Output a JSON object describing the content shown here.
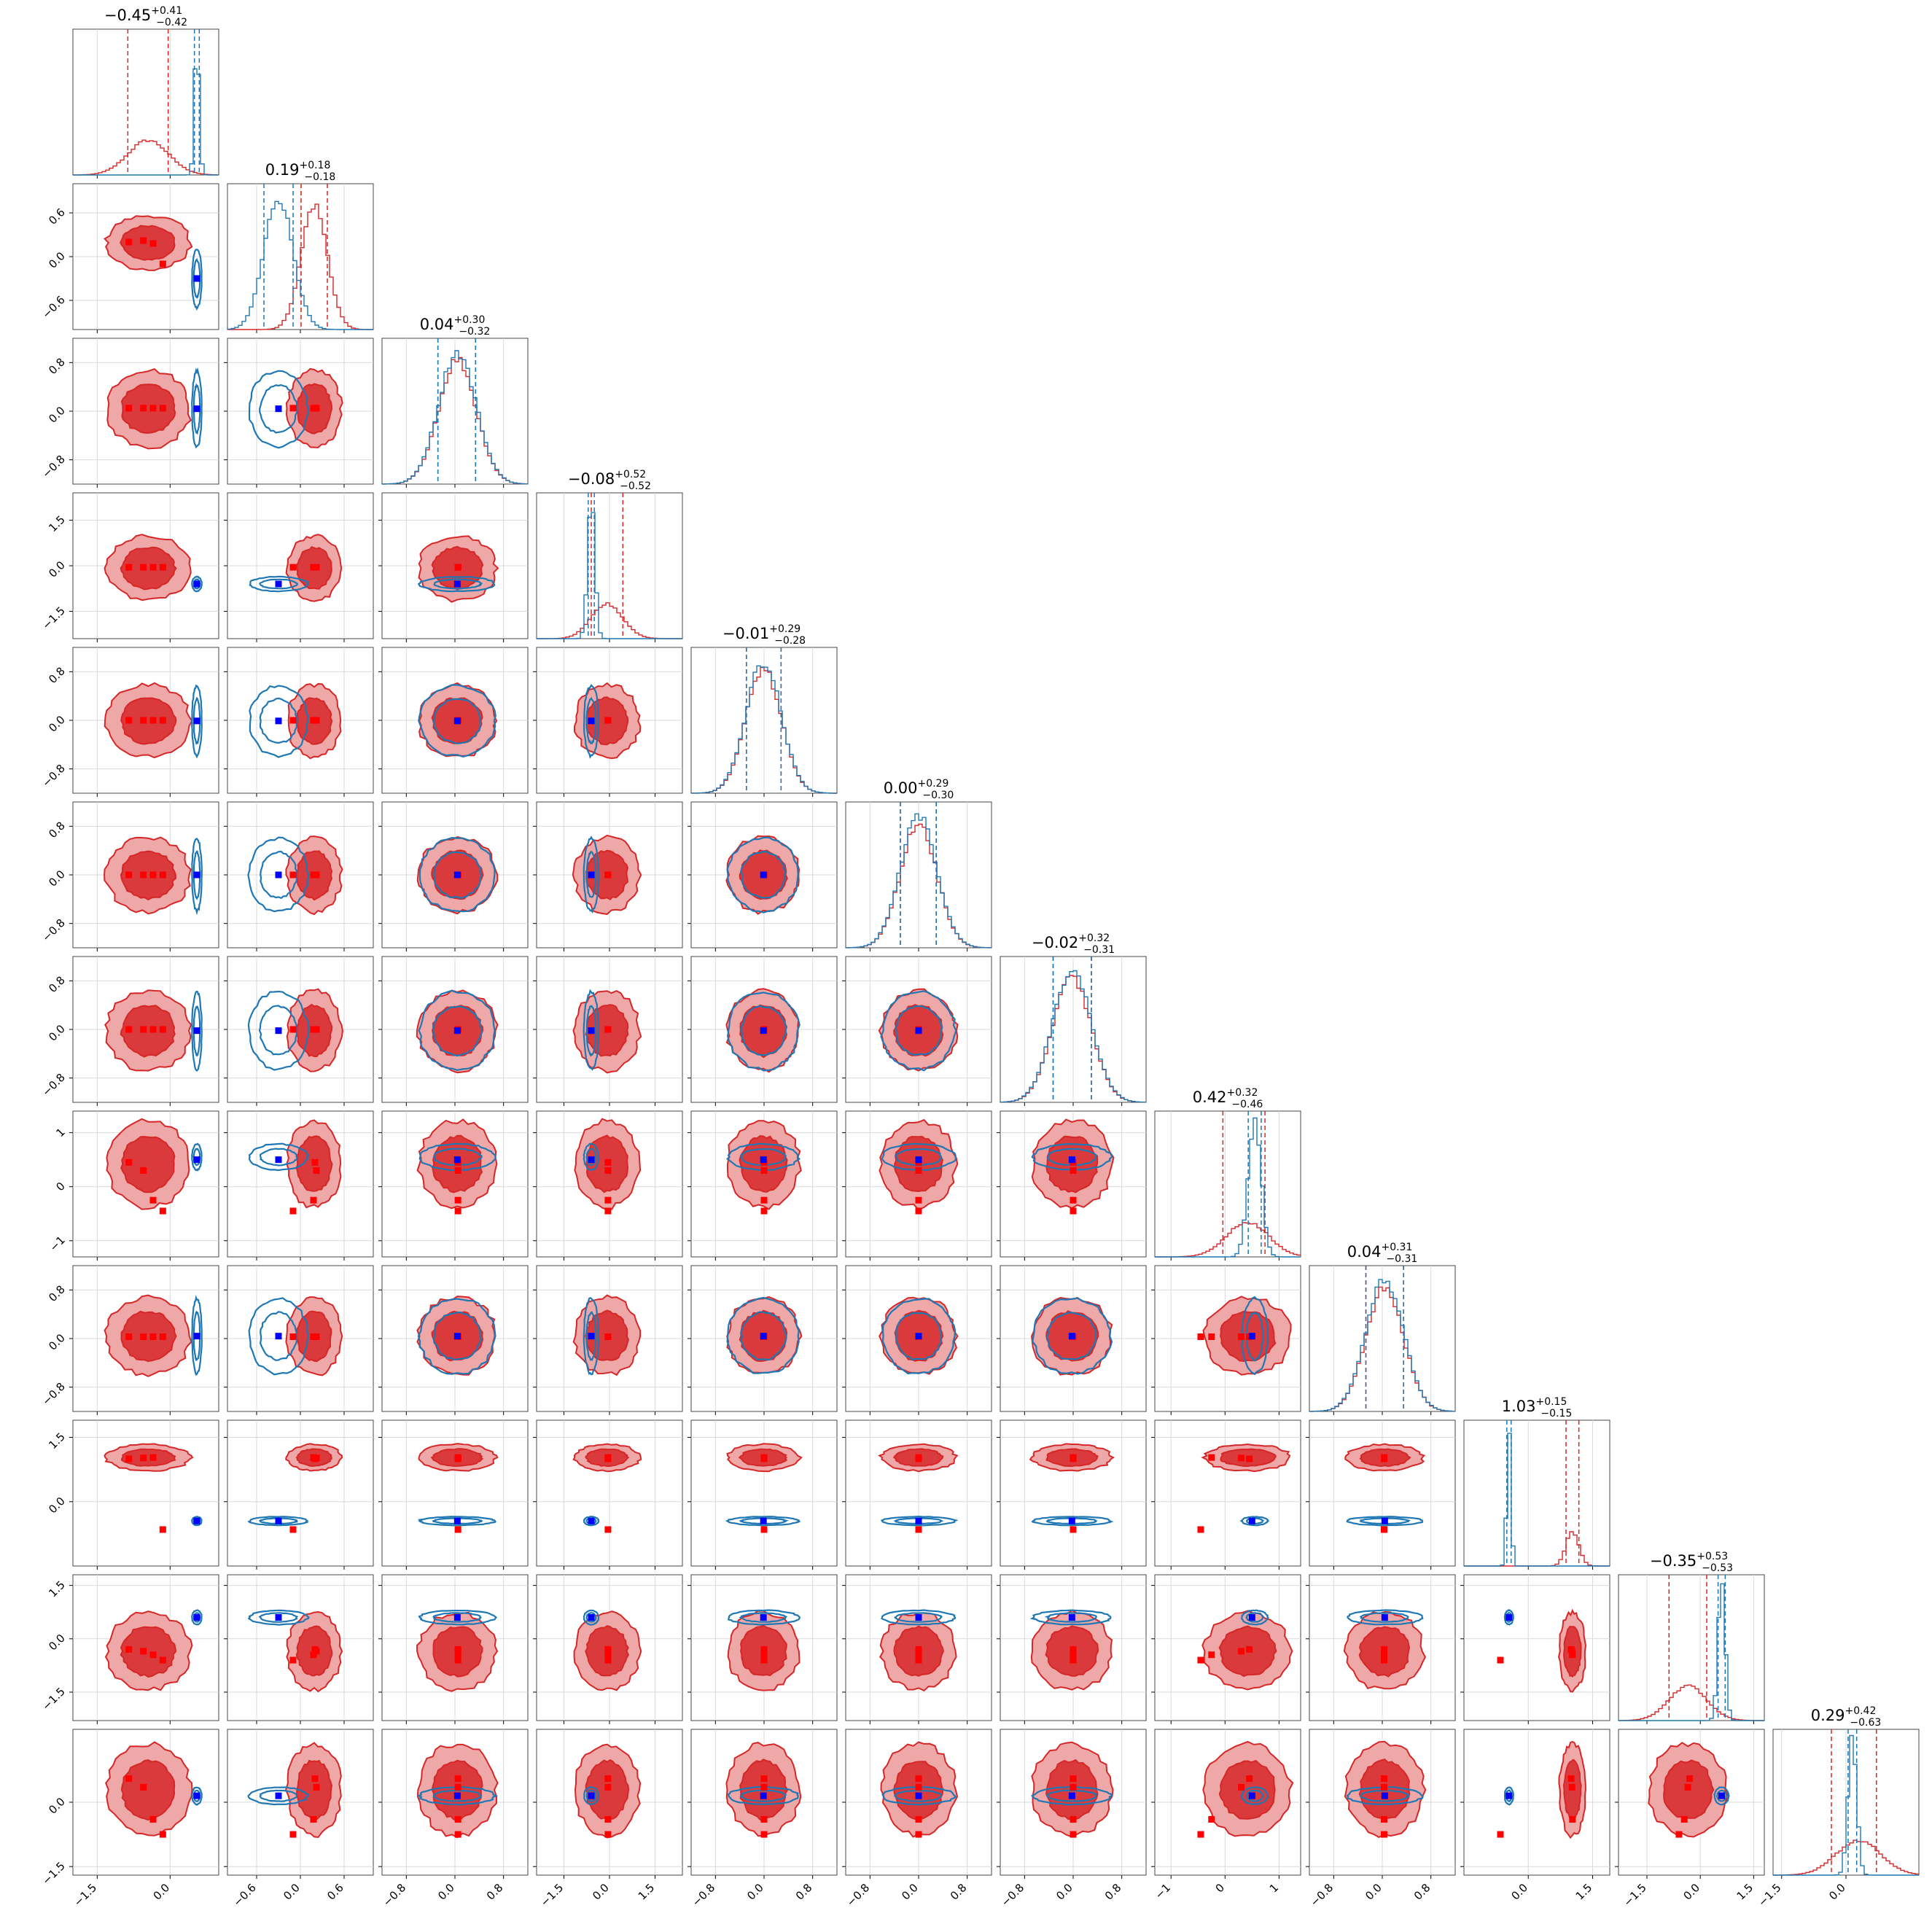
{
  "chart_data": {
    "type": "scatter",
    "title": "",
    "n_params": 12,
    "grid": true,
    "colors": {
      "red": "#d62728",
      "blue": "#1f77b4",
      "marker_blue": "#0000ff",
      "marker_red": "#ff0000"
    },
    "titles": [
      {
        "median": "−0.45",
        "plus": "+0.41",
        "minus": "−0.42"
      },
      {
        "median": "0.19",
        "plus": "+0.18",
        "minus": "−0.18"
      },
      {
        "median": "0.04",
        "plus": "+0.30",
        "minus": "−0.32"
      },
      {
        "median": "−0.08",
        "plus": "+0.52",
        "minus": "−0.52"
      },
      {
        "median": "−0.01",
        "plus": "+0.29",
        "minus": "−0.28"
      },
      {
        "median": "0.00",
        "plus": "+0.29",
        "minus": "−0.30"
      },
      {
        "median": "−0.02",
        "plus": "+0.32",
        "minus": "−0.31"
      },
      {
        "median": "0.42",
        "plus": "+0.32",
        "minus": "−0.46"
      },
      {
        "median": "0.04",
        "plus": "+0.31",
        "minus": "−0.31"
      },
      {
        "median": "1.03",
        "plus": "+0.15",
        "minus": "−0.15"
      },
      {
        "median": "−0.35",
        "plus": "+0.53",
        "minus": "−0.53"
      },
      {
        "median": "0.29",
        "plus": "+0.42",
        "minus": "−0.63"
      }
    ],
    "ranges": [
      [
        -2.0,
        1.0
      ],
      [
        -1.0,
        1.0
      ],
      [
        -1.2,
        1.2
      ],
      [
        -2.4,
        2.4
      ],
      [
        -1.2,
        1.2
      ],
      [
        -1.2,
        1.2
      ],
      [
        -1.2,
        1.2
      ],
      [
        -1.3,
        1.4
      ],
      [
        -1.2,
        1.2
      ],
      [
        -1.5,
        1.9
      ],
      [
        -2.3,
        1.8
      ],
      [
        -1.7,
        1.7
      ]
    ],
    "y_ticks": [
      null,
      [
        -0.6,
        0.0,
        0.6
      ],
      [
        -0.8,
        0.0,
        0.8
      ],
      [
        -1.5,
        0.0,
        1.5
      ],
      [
        -0.8,
        0.0,
        0.8
      ],
      [
        -0.8,
        0.0,
        0.8
      ],
      [
        -0.8,
        0.0,
        0.8
      ],
      [
        -1,
        0,
        1
      ],
      [
        -0.8,
        0.0,
        0.8
      ],
      [
        0.0,
        1.5
      ],
      [
        -1.5,
        0.0,
        1.5
      ],
      [
        -1.5,
        0.0
      ]
    ],
    "y_tick_labels": [
      null,
      [
        "−0.6",
        "0.0",
        "0.6"
      ],
      [
        "−0.8",
        "0.0",
        "0.8"
      ],
      [
        "−1.5",
        "0.0",
        "1.5"
      ],
      [
        "−0.8",
        "0.0",
        "0.8"
      ],
      [
        "−0.8",
        "0.0",
        "0.8"
      ],
      [
        "−0.8",
        "0.0",
        "0.8"
      ],
      [
        "−1",
        "0",
        "1"
      ],
      [
        "−0.8",
        "0.0",
        "0.8"
      ],
      [
        "0.0",
        "1.5"
      ],
      [
        "−1.5",
        "0.0",
        "1.5"
      ],
      [
        "−1.5",
        "0.0"
      ]
    ],
    "x_ticks": [
      [
        -1.5,
        0.0
      ],
      [
        -0.6,
        0.0,
        0.6
      ],
      [
        -0.8,
        0.0,
        0.8
      ],
      [
        -1.5,
        0.0,
        1.5
      ],
      [
        -0.8,
        0.0,
        0.8
      ],
      [
        -0.8,
        0.0,
        0.8
      ],
      [
        -0.8,
        0.0,
        0.8
      ],
      [
        -1,
        0,
        1
      ],
      [
        -0.8,
        0.0,
        0.8
      ],
      [
        0.0,
        1.5
      ],
      [
        -1.5,
        0.0,
        1.5
      ],
      [
        -1.5,
        0.0
      ]
    ],
    "x_tick_labels": [
      [
        "−1.5",
        "0.0"
      ],
      [
        "−0.6",
        "0.0",
        "0.6"
      ],
      [
        "−0.8",
        "0.0",
        "0.8"
      ],
      [
        "−1.5",
        "0.0",
        "1.5"
      ],
      [
        "−0.8",
        "0.0",
        "0.8"
      ],
      [
        "−0.8",
        "0.0",
        "0.8"
      ],
      [
        "−0.8",
        "0.0",
        "0.8"
      ],
      [
        "−1",
        "0",
        "1"
      ],
      [
        "−0.8",
        "0.0",
        "0.8"
      ],
      [
        "0.0",
        "1.5"
      ],
      [
        "−1.5",
        "0.0",
        "1.5"
      ],
      [
        "−1.5",
        "0.0"
      ]
    ],
    "series": [
      {
        "name": "",
        "color": "#d62728",
        "mean": [
          -0.45,
          0.19,
          0.04,
          -0.08,
          -0.01,
          0.0,
          -0.02,
          0.42,
          0.04,
          1.03,
          -0.35,
          0.29
        ],
        "sigma": [
          0.42,
          0.18,
          0.31,
          0.52,
          0.29,
          0.3,
          0.32,
          0.39,
          0.31,
          0.15,
          0.53,
          0.52
        ],
        "q_lo": [
          -0.87,
          0.01,
          -0.28,
          -0.6,
          -0.29,
          -0.3,
          -0.33,
          -0.04,
          -0.27,
          0.88,
          -0.88,
          -0.34
        ],
        "q_hi": [
          -0.04,
          0.37,
          0.34,
          0.44,
          0.28,
          0.29,
          0.3,
          0.74,
          0.35,
          1.18,
          0.18,
          0.71
        ]
      },
      {
        "name": "",
        "color": "#1f77b4",
        "mean": [
          0.55,
          -0.3,
          0.04,
          -0.6,
          -0.01,
          0.0,
          -0.02,
          0.55,
          0.04,
          -0.45,
          0.6,
          0.15
        ],
        "sigma": [
          0.05,
          0.2,
          0.31,
          0.12,
          0.29,
          0.3,
          0.32,
          0.12,
          0.31,
          0.05,
          0.1,
          0.1
        ],
        "q_lo": [
          0.5,
          -0.5,
          -0.28,
          -0.7,
          -0.29,
          -0.3,
          -0.33,
          0.43,
          -0.27,
          -0.5,
          0.5,
          0.05
        ],
        "q_hi": [
          0.6,
          -0.1,
          0.34,
          -0.5,
          0.28,
          0.29,
          0.3,
          0.67,
          0.35,
          -0.4,
          0.7,
          0.25
        ]
      }
    ],
    "truth_blue": [
      0.55,
      -0.3,
      0.04,
      -0.6,
      -0.01,
      0.0,
      -0.02,
      0.5,
      0.04,
      -0.45,
      0.6,
      0.15
    ],
    "truth_red": [
      [
        -0.85,
        0.2,
        0.05,
        -0.05,
        0.0,
        0.0,
        0.0,
        0.45,
        0.03,
        1.0,
        -0.3,
        0.55
      ],
      [
        -0.55,
        0.22,
        0.05,
        -0.05,
        0.0,
        0.0,
        0.0,
        0.3,
        0.03,
        1.02,
        -0.35,
        0.35
      ],
      [
        -0.35,
        0.18,
        0.05,
        -0.05,
        0.0,
        0.0,
        0.0,
        -0.25,
        0.03,
        1.03,
        -0.45,
        -0.4
      ],
      [
        -0.15,
        -0.1,
        0.05,
        -0.05,
        0.0,
        0.0,
        0.0,
        -0.45,
        0.03,
        -0.65,
        -0.6,
        -0.75
      ]
    ]
  }
}
